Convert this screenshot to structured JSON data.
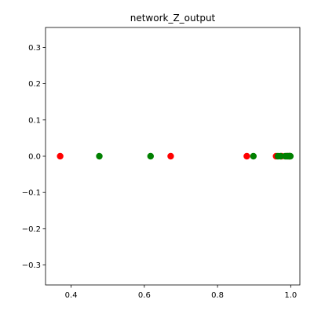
{
  "chart_data": {
    "type": "scatter",
    "title": "network_Z_output",
    "xlabel": "",
    "ylabel": "",
    "xlim": [
      0.33,
      1.025
    ],
    "ylim": [
      -0.355,
      0.355
    ],
    "xticks": [
      0.4,
      0.6,
      0.8,
      1.0
    ],
    "xtick_labels": [
      "0.4",
      "0.6",
      "0.8",
      "1.0"
    ],
    "yticks": [
      0.3,
      0.2,
      0.1,
      0.0,
      -0.1,
      -0.2,
      -0.3
    ],
    "ytick_labels": [
      "0.3",
      "0.2",
      "0.1",
      "0.0",
      "−0.1",
      "−0.2",
      "−0.3"
    ],
    "grid": false,
    "series": [
      {
        "color": "#ff0000",
        "points": [
          {
            "x": 0.37,
            "y": 0.0
          },
          {
            "x": 0.672,
            "y": 0.0
          },
          {
            "x": 0.88,
            "y": 0.0
          },
          {
            "x": 0.96,
            "y": 0.0
          },
          {
            "x": 0.975,
            "y": 0.0
          },
          {
            "x": 0.99,
            "y": 0.0
          },
          {
            "x": 0.997,
            "y": 0.0
          }
        ]
      },
      {
        "color": "#008000",
        "points": [
          {
            "x": 0.477,
            "y": 0.0
          },
          {
            "x": 0.617,
            "y": 0.0
          },
          {
            "x": 0.898,
            "y": 0.0
          },
          {
            "x": 0.965,
            "y": 0.0
          },
          {
            "x": 0.972,
            "y": 0.0
          },
          {
            "x": 0.985,
            "y": 0.0
          },
          {
            "x": 0.99,
            "y": 0.0
          },
          {
            "x": 0.994,
            "y": 0.0
          },
          {
            "x": 0.997,
            "y": 0.0
          },
          {
            "x": 0.999,
            "y": 0.0
          }
        ]
      }
    ]
  }
}
